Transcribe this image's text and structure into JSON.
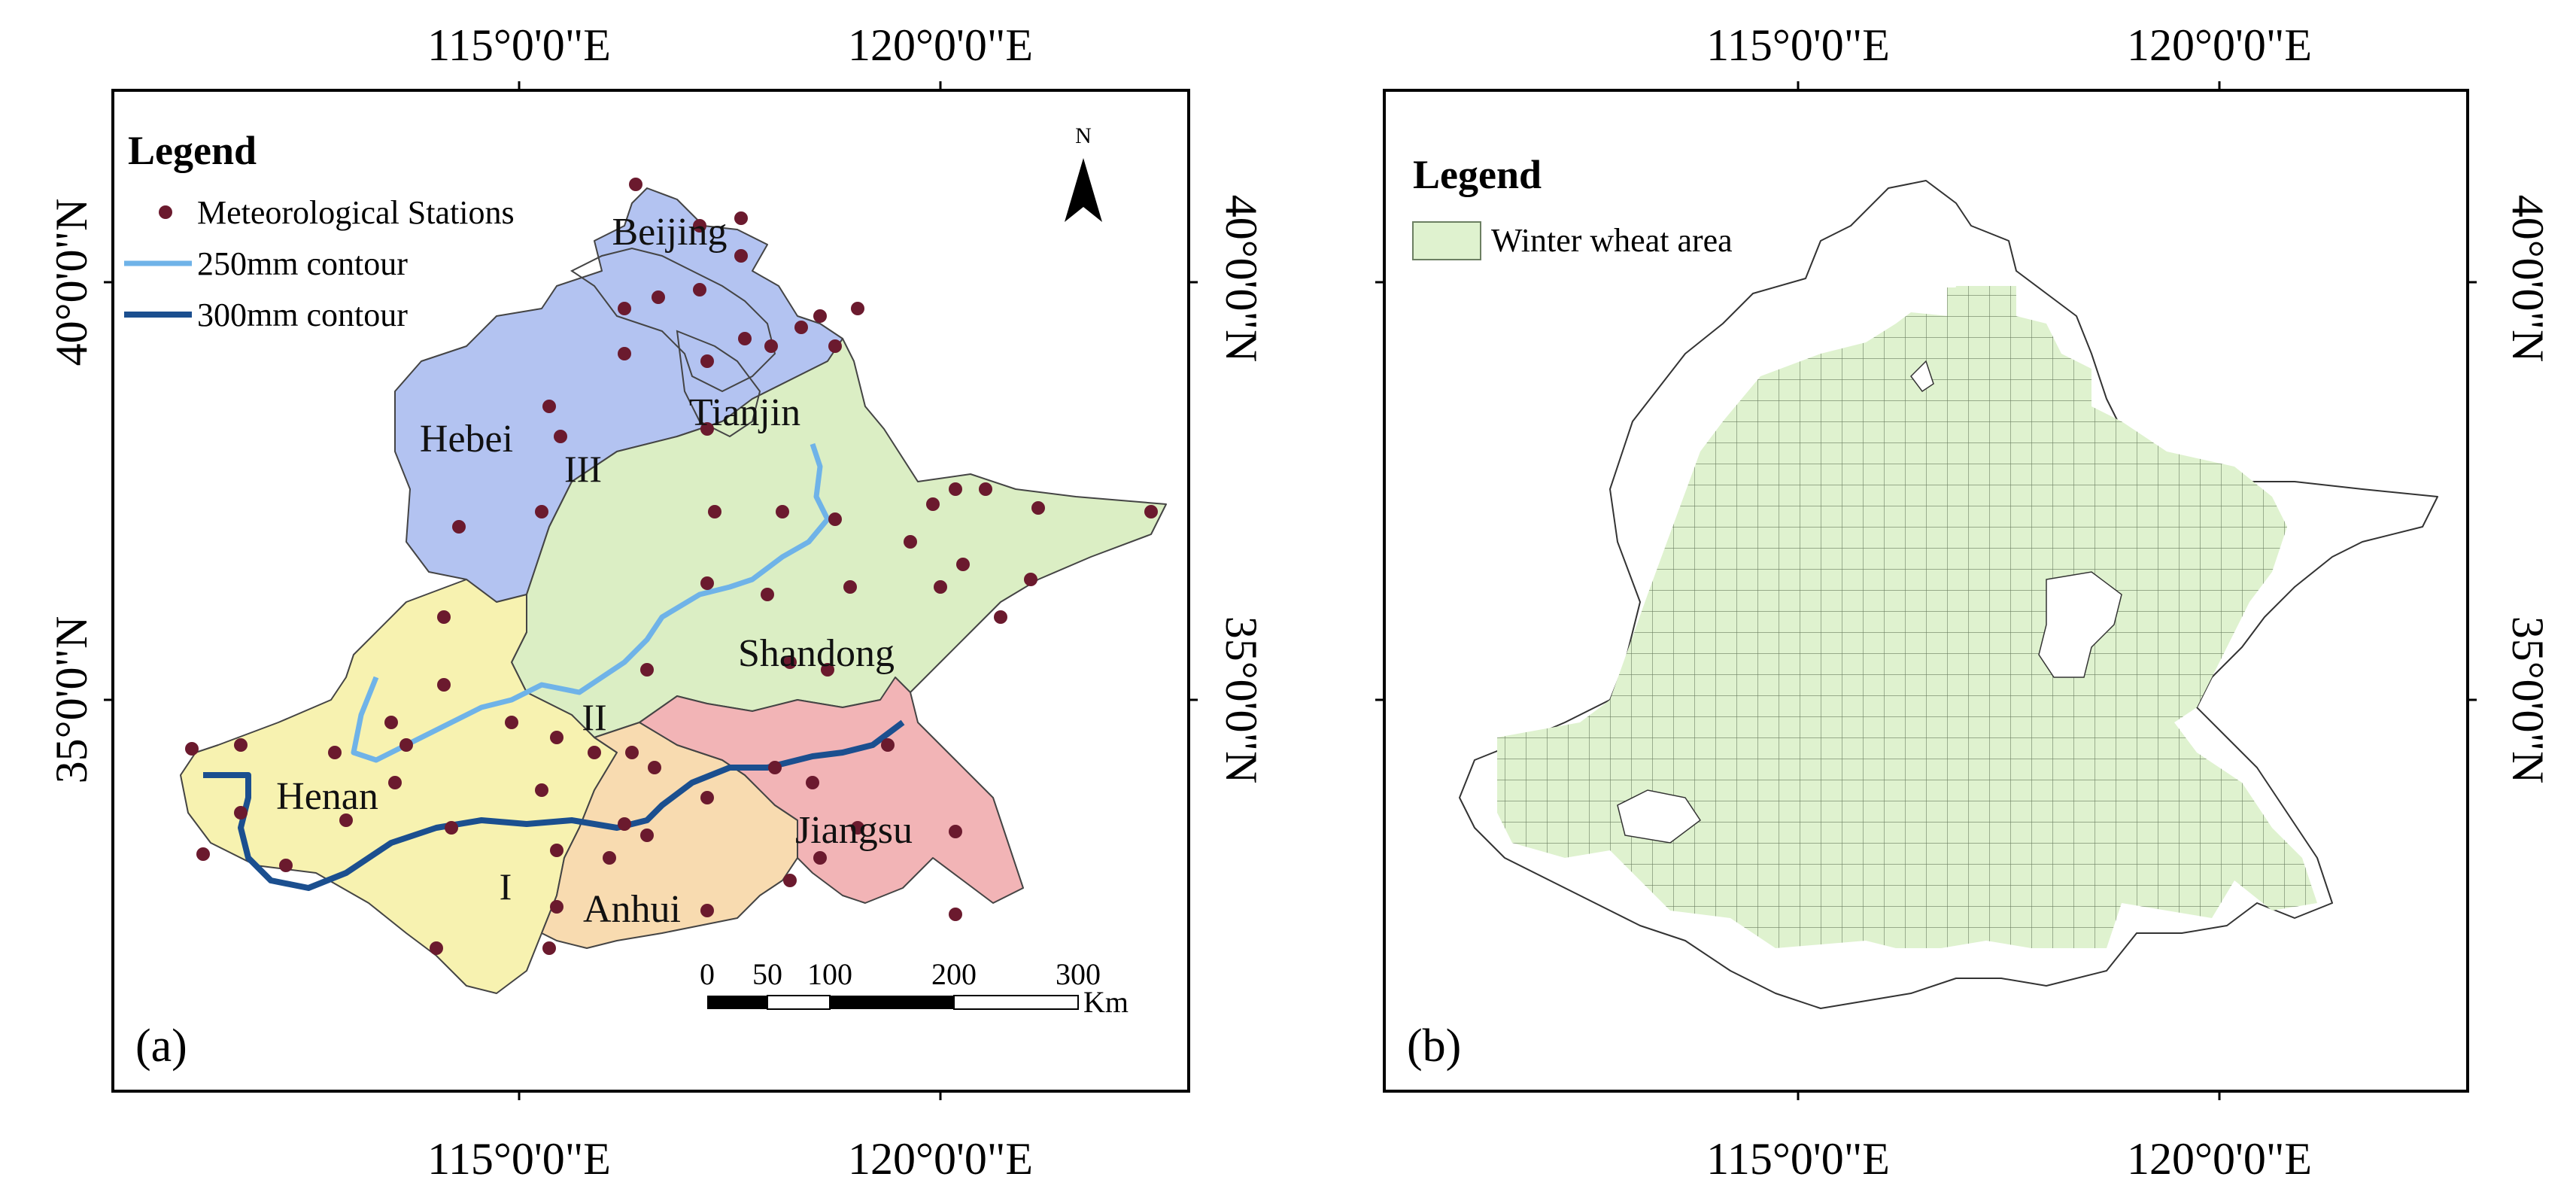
{
  "panel_a": {
    "label": "(a)",
    "legend": {
      "title": "Legend",
      "items": [
        {
          "label": "Meteorological Stations",
          "symbol": "dot",
          "color": "#6b1a2e"
        },
        {
          "label": "250mm contour",
          "symbol": "line",
          "color": "#6fb3e8"
        },
        {
          "label": "300mm contour",
          "symbol": "line",
          "color": "#1b4f8f"
        }
      ]
    },
    "north_label": "N",
    "top_lon_labels": [
      "115°0'0\"E",
      "120°0'0\"E"
    ],
    "bottom_lon_labels": [
      "115°0'0\"E",
      "120°0'0\"E"
    ],
    "left_lat_labels": [
      "40°0'0\"N",
      "35°0'0\"N"
    ],
    "right_lat_labels": [
      "40°0'0\"N",
      "35°0'0\"N"
    ],
    "provinces": [
      {
        "name": "Beijing",
        "color": "#b3c3f1"
      },
      {
        "name": "Tianjin",
        "color": "#b3c3f1"
      },
      {
        "name": "Hebei",
        "color": "#b3c3f1"
      },
      {
        "name": "Shandong",
        "color": "#dbeec4"
      },
      {
        "name": "Henan",
        "color": "#f7f2b0"
      },
      {
        "name": "Anhui",
        "color": "#f8dbb0"
      },
      {
        "name": "Jiangsu",
        "color": "#f2b4b6"
      }
    ],
    "regions": [
      "I",
      "II",
      "III"
    ],
    "scale_bar": {
      "ticks": [
        "0",
        "50",
        "100",
        "200",
        "300"
      ],
      "unit": "Km"
    }
  },
  "panel_b": {
    "label": "(b)",
    "legend": {
      "title": "Legend",
      "items": [
        {
          "label": "Winter wheat area",
          "symbol": "box",
          "color": "#dff2cf"
        }
      ]
    },
    "top_lon_labels": [
      "115°0'0\"E",
      "120°0'0\"E"
    ],
    "bottom_lon_labels": [
      "115°0'0\"E",
      "120°0'0\"E"
    ],
    "right_lat_labels": [
      "40°0'0\"N",
      "35°0'0\"N"
    ]
  }
}
